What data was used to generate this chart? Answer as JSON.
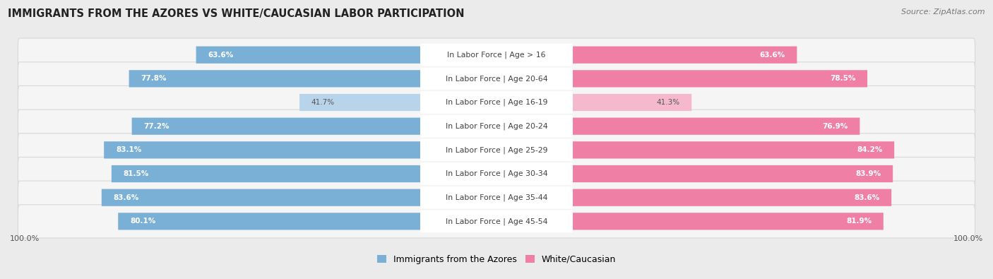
{
  "title": "IMMIGRANTS FROM THE AZORES VS WHITE/CAUCASIAN LABOR PARTICIPATION",
  "source": "Source: ZipAtlas.com",
  "categories": [
    "In Labor Force | Age > 16",
    "In Labor Force | Age 20-64",
    "In Labor Force | Age 16-19",
    "In Labor Force | Age 20-24",
    "In Labor Force | Age 25-29",
    "In Labor Force | Age 30-34",
    "In Labor Force | Age 35-44",
    "In Labor Force | Age 45-54"
  ],
  "azores_values": [
    63.6,
    77.8,
    41.7,
    77.2,
    83.1,
    81.5,
    83.6,
    80.1
  ],
  "white_values": [
    63.6,
    78.5,
    41.3,
    76.9,
    84.2,
    83.9,
    83.6,
    81.9
  ],
  "azores_color": "#7aafd6",
  "azores_color_light": "#b8d4ea",
  "white_color": "#ef7fa4",
  "white_color_light": "#f5b8cc",
  "label_azores": "Immigrants from the Azores",
  "label_white": "White/Caucasian",
  "max_val": 100.0,
  "background_color": "#ebebeb",
  "row_bg": "#f5f5f5",
  "row_border": "#d8d8d8"
}
